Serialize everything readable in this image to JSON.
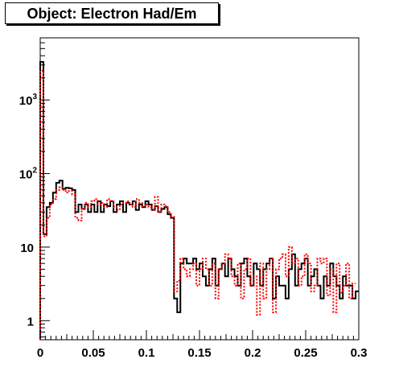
{
  "title": "Object: Electron Had/Em",
  "chart_data": {
    "type": "histogram",
    "title": "Object: Electron Had/Em",
    "xlabel": "",
    "ylabel": "",
    "xlim": [
      0,
      0.3
    ],
    "ylim": [
      0.55,
      7000
    ],
    "y_scale": "log",
    "grid": false,
    "x_ticks": [
      {
        "value": 0,
        "label": "0"
      },
      {
        "value": 0.05,
        "label": "0.05"
      },
      {
        "value": 0.1,
        "label": "0.1"
      },
      {
        "value": 0.15,
        "label": "0.15"
      },
      {
        "value": 0.2,
        "label": "0.2"
      },
      {
        "value": 0.25,
        "label": "0.25"
      },
      {
        "value": 0.3,
        "label": "0.3"
      }
    ],
    "y_ticks": [
      {
        "value": 1,
        "label": "1",
        "sup": ""
      },
      {
        "value": 10,
        "label": "10",
        "sup": ""
      },
      {
        "value": 100,
        "label": "10",
        "sup": "2"
      },
      {
        "value": 1000,
        "label": "10",
        "sup": "3"
      }
    ],
    "bin_width": 0.003,
    "series": [
      {
        "style": "solid",
        "color": "#000000",
        "values": [
          3300,
          15,
          35,
          40,
          55,
          75,
          80,
          62,
          64,
          63,
          60,
          30,
          38,
          33,
          38,
          30,
          38,
          30,
          42,
          30,
          38,
          36,
          42,
          30,
          38,
          42,
          30,
          40,
          38,
          42,
          32,
          38,
          35,
          42,
          38,
          32,
          36,
          30,
          33,
          35,
          28,
          25,
          2,
          1.3,
          6,
          7,
          6,
          6,
          7,
          5,
          6,
          4,
          3,
          5,
          7,
          3,
          5,
          6,
          4,
          7,
          5,
          4,
          3,
          6,
          7,
          4,
          3,
          6,
          5,
          3,
          5,
          6,
          7,
          2,
          4,
          3,
          3,
          2,
          5,
          8,
          3,
          5,
          6,
          7,
          3,
          4,
          5,
          3,
          2,
          4,
          3,
          6,
          4,
          3,
          2,
          4,
          3,
          3,
          2,
          2.5
        ]
      },
      {
        "style": "dashed",
        "color": "#ff0000",
        "values": [
          2500,
          14,
          25,
          38,
          45,
          60,
          65,
          60,
          55,
          58,
          52,
          25,
          23,
          33,
          40,
          35,
          42,
          45,
          38,
          40,
          35,
          45,
          42,
          35,
          32,
          38,
          40,
          42,
          38,
          35,
          45,
          40,
          36,
          38,
          35,
          32,
          48,
          30,
          38,
          36,
          30,
          26,
          2.5,
          3.5,
          7,
          5,
          4,
          5,
          6,
          3,
          5,
          7,
          5,
          3,
          6,
          2,
          5,
          6,
          8,
          7,
          4,
          3,
          6,
          2,
          5,
          7,
          3,
          4,
          1.2,
          6,
          2,
          5,
          7,
          1.3,
          5,
          7,
          8,
          4,
          10,
          6,
          7,
          3,
          4,
          8,
          6,
          2.5,
          3,
          7,
          6,
          7,
          2.2,
          5,
          1.3,
          6,
          2.4,
          3,
          6,
          2,
          3.2
        ]
      }
    ]
  }
}
